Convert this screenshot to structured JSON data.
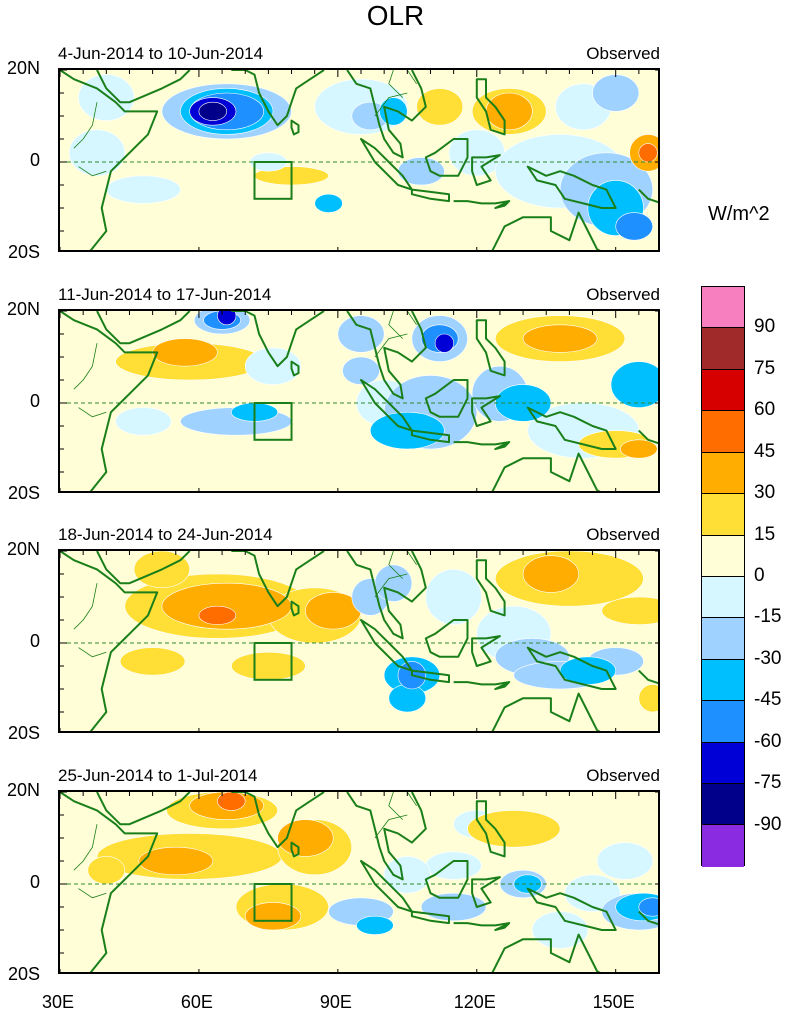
{
  "title": "OLR",
  "unit": "W/m^2",
  "panels": [
    {
      "date_range": "4-Jun-2014 to 10-Jun-2014",
      "label": "Observed"
    },
    {
      "date_range": "11-Jun-2014 to 17-Jun-2014",
      "label": "Observed"
    },
    {
      "date_range": "18-Jun-2014 to 24-Jun-2014",
      "label": "Observed"
    },
    {
      "date_range": "25-Jun-2014 to 1-Jul-2014",
      "label": "Observed"
    }
  ],
  "y_ticks": [
    "20N",
    "0",
    "20S"
  ],
  "x_ticks": [
    "30E",
    "60E",
    "90E",
    "120E",
    "150E"
  ],
  "colorbar": {
    "labels": [
      "90",
      "75",
      "60",
      "45",
      "30",
      "15",
      "0",
      "-15",
      "-30",
      "-45",
      "-60",
      "-75",
      "-90"
    ],
    "colors": [
      "#f77fc0",
      "#a02a2a",
      "#d60000",
      "#ff6c00",
      "#ffad00",
      "#ffdf35",
      "#fffed6",
      "#d6f7ff",
      "#9fd2ff",
      "#00bfff",
      "#1e90ff",
      "#0000d6",
      "#00008b",
      "#8a2be2"
    ]
  },
  "palette": {
    "land": "#1a7f1a",
    "equator": "#2e8b2e",
    "box": "#1a7f1a"
  }
}
